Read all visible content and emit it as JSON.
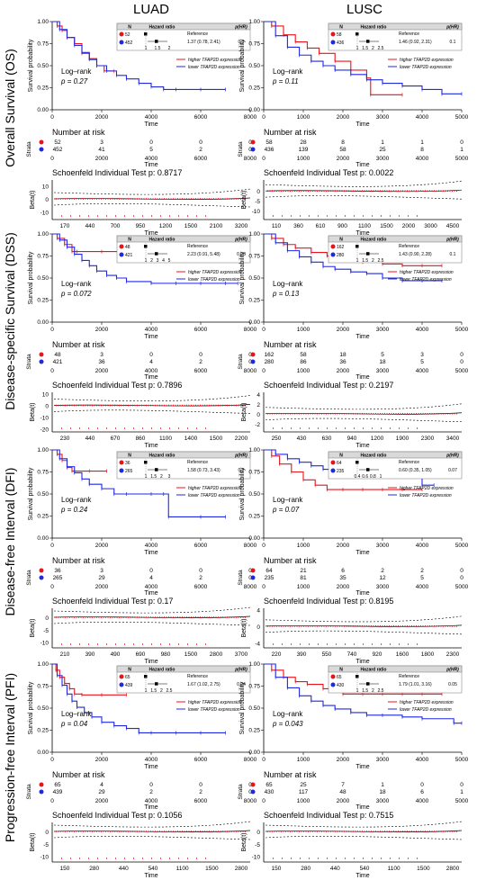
{
  "columns": [
    "LUAD",
    "LUSC"
  ],
  "rows": [
    "Overall Survival (OS)",
    "Disease-specific Survival (DSS)",
    "Disease-free Interval (DFI)",
    "Progression-free Interval (PFI)"
  ],
  "colors": {
    "high": "#e8141c",
    "low": "#1f29e0",
    "background": "#ffffff",
    "table_header": "#d9d9d9"
  },
  "common": {
    "y_label": "Survival probability",
    "x_label": "Time",
    "risk_title": "Number at risk",
    "strata_label": "Strata",
    "beta_label": "Beta(t)",
    "logrank_label": "Log–rank",
    "legend_high": "higher TFAP2D expression",
    "legend_low": "lower TFAP2D expression",
    "hr_headers": [
      "N",
      "Hazard ratio",
      "p(HR)"
    ],
    "hr_reference": "Reference",
    "y_ticks": [
      "0.00",
      "0.25",
      "0.50",
      "0.75",
      "1.00"
    ]
  },
  "chart_data": [
    {
      "type": "line",
      "cohort": "LUAD",
      "endpoint": "OS",
      "xlim": [
        0,
        8000
      ],
      "x_ticks": [
        "0",
        "2000",
        "4000",
        "6000",
        "8000"
      ],
      "ylim": [
        0,
        1
      ],
      "p_logrank": "p = 0.27",
      "hr": {
        "n_high": "52",
        "n_low": "452",
        "text": "1.37 (0.78, 2.41)",
        "p": "0.3",
        "axis": [
          "1",
          "1.5",
          "2"
        ]
      },
      "series": [
        {
          "group": "high",
          "x": [
            0,
            200,
            400,
            600,
            900,
            1200,
            1500,
            1800,
            2100,
            2500
          ],
          "y": [
            1.0,
            0.95,
            0.9,
            0.82,
            0.75,
            0.64,
            0.58,
            0.5,
            0.44,
            0.44
          ]
        },
        {
          "group": "low",
          "x": [
            0,
            300,
            600,
            900,
            1200,
            1500,
            1800,
            2200,
            2600,
            3000,
            3500,
            4000,
            4500,
            5000,
            6000,
            7000
          ],
          "y": [
            1.0,
            0.91,
            0.82,
            0.73,
            0.65,
            0.57,
            0.5,
            0.44,
            0.39,
            0.35,
            0.3,
            0.26,
            0.23,
            0.23,
            0.23,
            0.23
          ]
        }
      ],
      "risk": {
        "times": [
          "0",
          "2000",
          "4000",
          "6000",
          "8000"
        ],
        "high": [
          "52",
          "3",
          "0",
          "0",
          "0"
        ],
        "low": [
          "452",
          "41",
          "5",
          "2",
          "0"
        ]
      },
      "schoenfeld": {
        "p": "0.8717",
        "x_ticks": [
          "170",
          "440",
          "700",
          "950",
          "1200",
          "1500",
          "2100",
          "3200"
        ],
        "y_ticks": [
          "10",
          "0",
          "-10"
        ],
        "ylim": [
          -15,
          15
        ]
      }
    },
    {
      "type": "line",
      "cohort": "LUSC",
      "endpoint": "OS",
      "xlim": [
        0,
        5000
      ],
      "x_ticks": [
        "0",
        "1000",
        "2000",
        "3000",
        "4000",
        "5000"
      ],
      "ylim": [
        0,
        1
      ],
      "p_logrank": "p = 0.11",
      "hr": {
        "n_high": "58",
        "n_low": "436",
        "text": "1.46 (0.92, 2.31)",
        "p": "0.1",
        "axis": [
          "1",
          "1.5",
          "2",
          "2.5"
        ]
      },
      "series": [
        {
          "group": "high",
          "x": [
            0,
            200,
            500,
            800,
            1100,
            1400,
            1800,
            2200,
            2600,
            2700,
            3500
          ],
          "y": [
            1.0,
            0.95,
            0.85,
            0.77,
            0.7,
            0.64,
            0.55,
            0.45,
            0.36,
            0.17,
            0.17
          ]
        },
        {
          "group": "low",
          "x": [
            0,
            300,
            600,
            900,
            1200,
            1500,
            1800,
            2200,
            2600,
            3000,
            3500,
            4000,
            4500,
            5000
          ],
          "y": [
            1.0,
            0.84,
            0.71,
            0.62,
            0.55,
            0.5,
            0.45,
            0.4,
            0.34,
            0.3,
            0.27,
            0.23,
            0.18,
            0.18
          ]
        }
      ],
      "risk": {
        "times": [
          "0",
          "1000",
          "2000",
          "3000",
          "4000",
          "5000"
        ],
        "high": [
          "58",
          "28",
          "8",
          "1",
          "1",
          "0"
        ],
        "low": [
          "436",
          "139",
          "58",
          "25",
          "8",
          "1"
        ]
      },
      "schoenfeld": {
        "p": "0.0022",
        "x_ticks": [
          "110",
          "360",
          "610",
          "900",
          "1100",
          "1500",
          "2000",
          "3000",
          "4500"
        ],
        "y_ticks": [
          "0",
          "-5",
          "-10"
        ],
        "ylim": [
          -14,
          6
        ]
      }
    },
    {
      "type": "line",
      "cohort": "LUAD",
      "endpoint": "DSS",
      "xlim": [
        0,
        8000
      ],
      "x_ticks": [
        "0",
        "2000",
        "4000",
        "6000",
        "8000"
      ],
      "ylim": [
        0,
        1
      ],
      "p_logrank": "p = 0.072",
      "hr": {
        "n_high": "48",
        "n_low": "421",
        "text": "2.23 (0.91, 5.48)",
        "p": "0.08",
        "axis": [
          "1",
          "2",
          "3",
          "4",
          "5"
        ]
      },
      "series": [
        {
          "group": "high",
          "x": [
            0,
            200,
            500,
            800,
            1000,
            2000,
            2700
          ],
          "y": [
            1.0,
            0.95,
            0.88,
            0.8,
            0.8,
            0.8,
            0.8
          ]
        },
        {
          "group": "low",
          "x": [
            0,
            300,
            600,
            900,
            1200,
            1500,
            1800,
            2200,
            2600,
            3000,
            4000,
            5000,
            6000,
            7000,
            7500
          ],
          "y": [
            1.0,
            0.93,
            0.85,
            0.77,
            0.7,
            0.64,
            0.58,
            0.53,
            0.5,
            0.46,
            0.44,
            0.44,
            0.44,
            0.44,
            0.44
          ]
        }
      ],
      "risk": {
        "times": [
          "0",
          "2000",
          "4000",
          "6000",
          "8000"
        ],
        "high": [
          "48",
          "3",
          "0",
          "0",
          "0"
        ],
        "low": [
          "421",
          "36",
          "4",
          "2",
          "0"
        ]
      },
      "schoenfeld": {
        "p": "0.7896",
        "x_ticks": [
          "230",
          "440",
          "670",
          "860",
          "1100",
          "1400",
          "1500",
          "2200"
        ],
        "y_ticks": [
          "10",
          "0",
          "-10",
          "-20"
        ],
        "ylim": [
          -22,
          12
        ]
      }
    },
    {
      "type": "line",
      "cohort": "LUSC",
      "endpoint": "DSS",
      "xlim": [
        0,
        5000
      ],
      "x_ticks": [
        "0",
        "1000",
        "2000",
        "3000",
        "4000",
        "5000"
      ],
      "ylim": [
        0,
        1
      ],
      "p_logrank": "p = 0.13",
      "hr": {
        "n_high": "162",
        "n_low": "280",
        "text": "1.43 (0.90, 2.28)",
        "p": "0.1",
        "axis": [
          "1",
          "1.5",
          "2",
          "2.5"
        ]
      },
      "series": [
        {
          "group": "high",
          "x": [
            0,
            200,
            500,
            800,
            1200,
            1600,
            2000,
            2500,
            3000,
            3500,
            4000,
            4500
          ],
          "y": [
            1.0,
            0.95,
            0.88,
            0.84,
            0.79,
            0.75,
            0.72,
            0.68,
            0.66,
            0.64,
            0.64,
            0.64
          ]
        },
        {
          "group": "low",
          "x": [
            0,
            300,
            600,
            900,
            1200,
            1500,
            1800,
            2200,
            2600,
            3000,
            3500,
            4000,
            4500
          ],
          "y": [
            1.0,
            0.9,
            0.81,
            0.74,
            0.68,
            0.63,
            0.6,
            0.57,
            0.55,
            0.5,
            0.47,
            0.47,
            0.47
          ]
        }
      ],
      "risk": {
        "times": [
          "0",
          "1000",
          "2000",
          "3000",
          "4000",
          "5000"
        ],
        "high": [
          "162",
          "58",
          "18",
          "5",
          "3",
          "0"
        ],
        "low": [
          "280",
          "86",
          "36",
          "18",
          "5",
          "0"
        ]
      },
      "schoenfeld": {
        "p": "0.2197",
        "x_ticks": [
          "250",
          "430",
          "630",
          "940",
          "1200",
          "1900",
          "2300",
          "3400"
        ],
        "y_ticks": [
          "4",
          "2",
          "0",
          "-2"
        ],
        "ylim": [
          -3.5,
          4.5
        ]
      }
    },
    {
      "type": "line",
      "cohort": "LUAD",
      "endpoint": "DFI",
      "xlim": [
        0,
        8000
      ],
      "x_ticks": [
        "0",
        "2000",
        "4000",
        "6000",
        "8000"
      ],
      "ylim": [
        0,
        1
      ],
      "p_logrank": "p = 0.24",
      "hr": {
        "n_high": "36",
        "n_low": "265",
        "text": "1.58 (0.73, 3.43)",
        "p": "0.2",
        "axis": [
          "1",
          "1.5",
          "2",
          "3"
        ]
      },
      "series": [
        {
          "group": "high",
          "x": [
            0,
            200,
            400,
            600,
            800,
            1500,
            2200
          ],
          "y": [
            1.0,
            0.95,
            0.88,
            0.8,
            0.76,
            0.76,
            0.76
          ]
        },
        {
          "group": "low",
          "x": [
            0,
            300,
            600,
            900,
            1200,
            1500,
            2000,
            2500,
            3000,
            4000,
            4500,
            4700,
            6000,
            7000
          ],
          "y": [
            1.0,
            0.9,
            0.81,
            0.74,
            0.67,
            0.61,
            0.56,
            0.5,
            0.5,
            0.5,
            0.5,
            0.24,
            0.24,
            0.24
          ]
        }
      ],
      "risk": {
        "times": [
          "0",
          "2000",
          "4000",
          "6000",
          "8000"
        ],
        "high": [
          "36",
          "3",
          "0",
          "0",
          "0"
        ],
        "low": [
          "265",
          "29",
          "4",
          "2",
          "0"
        ]
      },
      "schoenfeld": {
        "p": "0.17",
        "x_ticks": [
          "210",
          "390",
          "490",
          "690",
          "980",
          "1500",
          "2800",
          "3700"
        ],
        "y_ticks": [
          "0",
          "-5",
          "-10"
        ],
        "ylim": [
          -12,
          4
        ]
      }
    },
    {
      "type": "line",
      "cohort": "LUSC",
      "endpoint": "DFI",
      "xlim": [
        0,
        5000
      ],
      "x_ticks": [
        "0",
        "1000",
        "2000",
        "3000",
        "4000",
        "5000"
      ],
      "ylim": [
        0,
        1
      ],
      "p_logrank": "p = 0.07",
      "hr": {
        "n_high": "64",
        "n_low": "235",
        "text": "0.60 (0.35, 1.05)",
        "p": "0.07",
        "axis": [
          "0.4",
          "0.6",
          "0.8",
          "1"
        ]
      },
      "series": [
        {
          "group": "high",
          "x": [
            0,
            200,
            400,
            700,
            1000,
            1300,
            1600,
            2000,
            2500,
            3000,
            3500,
            4000
          ],
          "y": [
            1.0,
            0.93,
            0.84,
            0.75,
            0.66,
            0.6,
            0.55,
            0.55,
            0.55,
            0.55,
            0.55,
            0.55
          ]
        },
        {
          "group": "low",
          "x": [
            0,
            300,
            600,
            900,
            1200,
            1500,
            2000,
            2500,
            3000,
            3500,
            4000,
            4300
          ],
          "y": [
            1.0,
            0.95,
            0.9,
            0.86,
            0.82,
            0.78,
            0.75,
            0.72,
            0.7,
            0.7,
            0.6,
            0.6
          ]
        }
      ],
      "risk": {
        "times": [
          "0",
          "1000",
          "2000",
          "3000",
          "4000",
          "5000"
        ],
        "high": [
          "64",
          "21",
          "6",
          "2",
          "2",
          "0"
        ],
        "low": [
          "235",
          "81",
          "35",
          "12",
          "5",
          "0"
        ]
      },
      "schoenfeld": {
        "p": "0.8195",
        "x_ticks": [
          "220",
          "390",
          "550",
          "740",
          "920",
          "1600",
          "1800",
          "2300"
        ],
        "y_ticks": [
          "4",
          "0",
          "-4"
        ],
        "ylim": [
          -5,
          4.5
        ]
      }
    },
    {
      "type": "line",
      "cohort": "LUAD",
      "endpoint": "PFI",
      "xlim": [
        0,
        8000
      ],
      "x_ticks": [
        "0",
        "2000",
        "4000",
        "6000",
        "8000"
      ],
      "ylim": [
        0,
        1
      ],
      "p_logrank": "p = 0.04",
      "hr": {
        "n_high": "65",
        "n_low": "439",
        "text": "1.67 (1.02, 2.75)",
        "p": "0.04",
        "axis": [
          "1",
          "1.5",
          "2",
          "2.5"
        ]
      },
      "series": [
        {
          "group": "high",
          "x": [
            0,
            150,
            300,
            500,
            700,
            900,
            1200,
            2000,
            3000
          ],
          "y": [
            1.0,
            0.93,
            0.85,
            0.78,
            0.72,
            0.66,
            0.65,
            0.65,
            0.65
          ]
        },
        {
          "group": "low",
          "x": [
            0,
            200,
            400,
            600,
            800,
            1000,
            1300,
            1600,
            2000,
            2500,
            3000,
            3500,
            4000,
            5000,
            6000,
            7000
          ],
          "y": [
            1.0,
            0.87,
            0.76,
            0.66,
            0.58,
            0.51,
            0.45,
            0.4,
            0.34,
            0.3,
            0.27,
            0.22,
            0.22,
            0.22,
            0.22,
            0.22
          ]
        }
      ],
      "risk": {
        "times": [
          "0",
          "2000",
          "4000",
          "6000",
          "8000"
        ],
        "high": [
          "65",
          "4",
          "0",
          "0",
          "0"
        ],
        "low": [
          "439",
          "29",
          "2",
          "2",
          "0"
        ]
      },
      "schoenfeld": {
        "p": "0.1056",
        "x_ticks": [
          "150",
          "280",
          "440",
          "540",
          "1100",
          "1500",
          "2800"
        ],
        "y_ticks": [
          "0",
          "-5",
          "-10"
        ],
        "ylim": [
          -12,
          4
        ]
      }
    },
    {
      "type": "line",
      "cohort": "LUSC",
      "endpoint": "PFI",
      "xlim": [
        0,
        5000
      ],
      "x_ticks": [
        "0",
        "1000",
        "2000",
        "3000",
        "4000",
        "5000"
      ],
      "ylim": [
        0,
        1
      ],
      "p_logrank": "p = 0.043",
      "hr": {
        "n_high": "65",
        "n_low": "430",
        "text": "1.79 (1.01, 3.16)",
        "p": "0.05",
        "axis": [
          "1",
          "1.5",
          "2",
          "2.5"
        ]
      },
      "series": [
        {
          "group": "high",
          "x": [
            0,
            200,
            500,
            800,
            1100,
            1500,
            2000,
            2500,
            3000,
            3500,
            4000,
            4500
          ],
          "y": [
            1.0,
            0.93,
            0.85,
            0.8,
            0.77,
            0.72,
            0.66,
            0.66,
            0.66,
            0.66,
            0.66,
            0.66
          ]
        },
        {
          "group": "low",
          "x": [
            0,
            300,
            600,
            900,
            1200,
            1500,
            1800,
            2200,
            2600,
            3000,
            3500,
            4000,
            4800,
            5000
          ],
          "y": [
            1.0,
            0.85,
            0.73,
            0.64,
            0.58,
            0.53,
            0.49,
            0.45,
            0.42,
            0.42,
            0.4,
            0.38,
            0.33,
            0.33
          ]
        }
      ],
      "risk": {
        "times": [
          "0",
          "1000",
          "2000",
          "3000",
          "4000",
          "5000"
        ],
        "high": [
          "65",
          "25",
          "7",
          "1",
          "0",
          "0"
        ],
        "low": [
          "430",
          "117",
          "48",
          "18",
          "6",
          "1"
        ]
      },
      "schoenfeld": {
        "p": "0.7515",
        "x_ticks": [
          "150",
          "280",
          "440",
          "540",
          "1100",
          "1500",
          "2800"
        ],
        "y_ticks": [
          "0",
          "-5",
          "-10"
        ],
        "ylim": [
          -12,
          4
        ]
      }
    }
  ]
}
